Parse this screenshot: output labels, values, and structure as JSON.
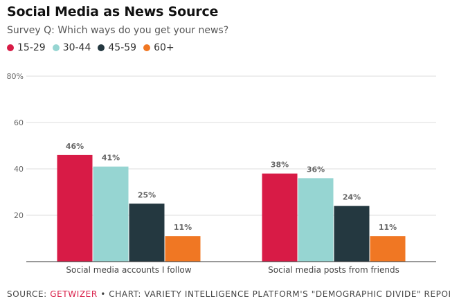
{
  "title": "Social Media as News Source",
  "subtitle": "Survey Q: Which ways do you get your news?",
  "footer": {
    "prefix": "SOURCE: ",
    "brand": "GETWIZER",
    "suffix": " • CHART: VARIETY INTELLIGENCE PLATFORM'S \"DEMOGRAPHIC DIVIDE\" REPORT"
  },
  "chart_data": {
    "type": "bar",
    "categories": [
      "Social media accounts I follow",
      "Social media posts from friends"
    ],
    "series": [
      {
        "name": "15-29",
        "color": "#d81b46",
        "values": [
          46,
          38
        ],
        "labels": [
          "46%",
          "38%"
        ]
      },
      {
        "name": "30-44",
        "color": "#96d5d2",
        "values": [
          41,
          36
        ],
        "labels": [
          "41%",
          "36%"
        ]
      },
      {
        "name": "45-59",
        "color": "#243840",
        "values": [
          25,
          24
        ],
        "labels": [
          "25%",
          "24%"
        ]
      },
      {
        "name": "60+",
        "color": "#f07723",
        "values": [
          11,
          11
        ],
        "labels": [
          "11%",
          "11%"
        ]
      }
    ],
    "ylim": [
      0,
      80
    ],
    "yticks": [
      0,
      20,
      40,
      60,
      80
    ],
    "ytick_labels": [
      "",
      "20",
      "40",
      "60",
      "80%"
    ],
    "grid": true,
    "legend": "top-left"
  }
}
